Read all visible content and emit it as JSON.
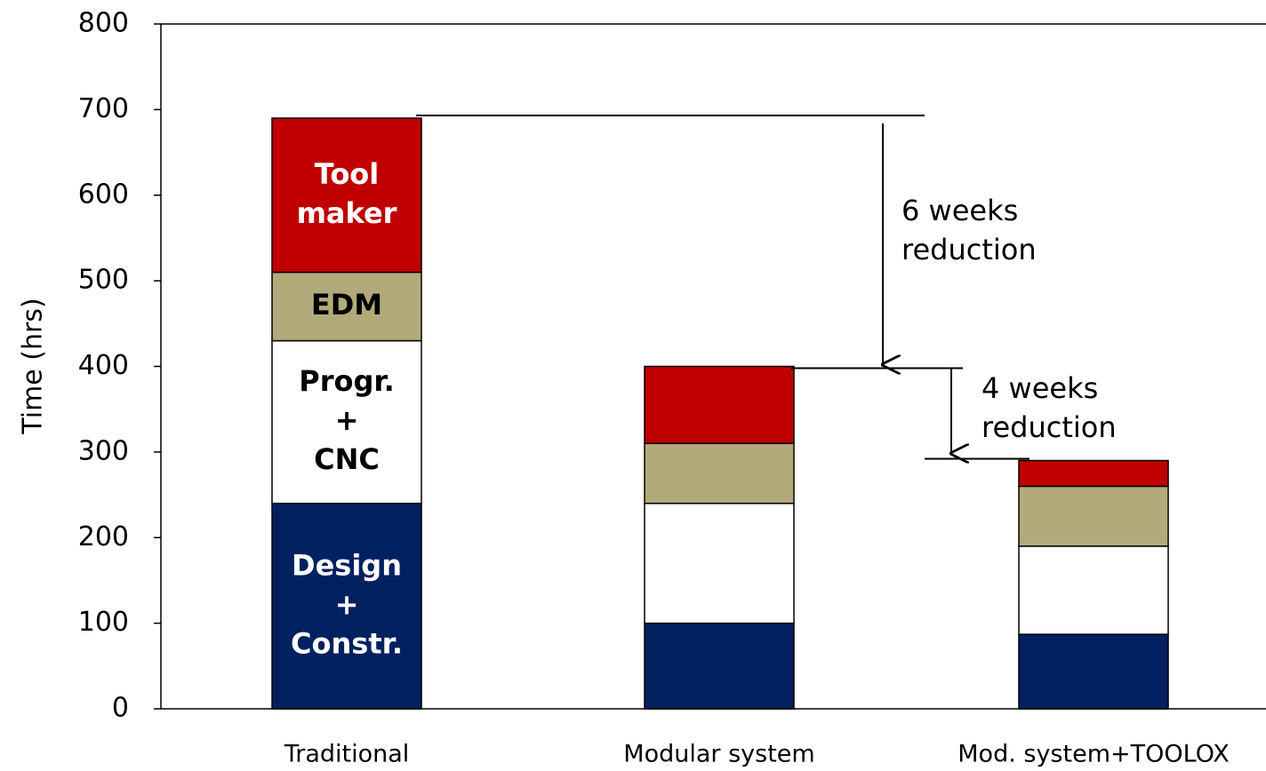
{
  "chart_data": {
    "type": "stacked_bar",
    "y_label": "Time (hrs)",
    "categories": [
      "Traditional",
      "Modular system",
      "Mod. system+TOOLOX"
    ],
    "series": [
      {
        "name": "Design\n+\nConstr.",
        "color": "#002060",
        "label_color": "#ffffff",
        "values": [
          240,
          100,
          87
        ]
      },
      {
        "name": "Progr.\n+\nCNC",
        "color": "#ffffff",
        "label_color": "#000000",
        "values": [
          190,
          140,
          103
        ]
      },
      {
        "name": "EDM",
        "color": "#b3aa7c",
        "label_color": "#000000",
        "values": [
          80,
          70,
          70
        ]
      },
      {
        "name": "Tool\nmaker",
        "color": "#c00000",
        "label_color": "#ffffff",
        "values": [
          180,
          90,
          30
        ]
      }
    ],
    "annotations": [
      "6 weeks\nreduction",
      "4 weeks\nreduction"
    ],
    "ylim": [
      0,
      800
    ],
    "yticks": [
      0,
      100,
      200,
      300,
      400,
      500,
      600,
      700,
      800
    ]
  }
}
